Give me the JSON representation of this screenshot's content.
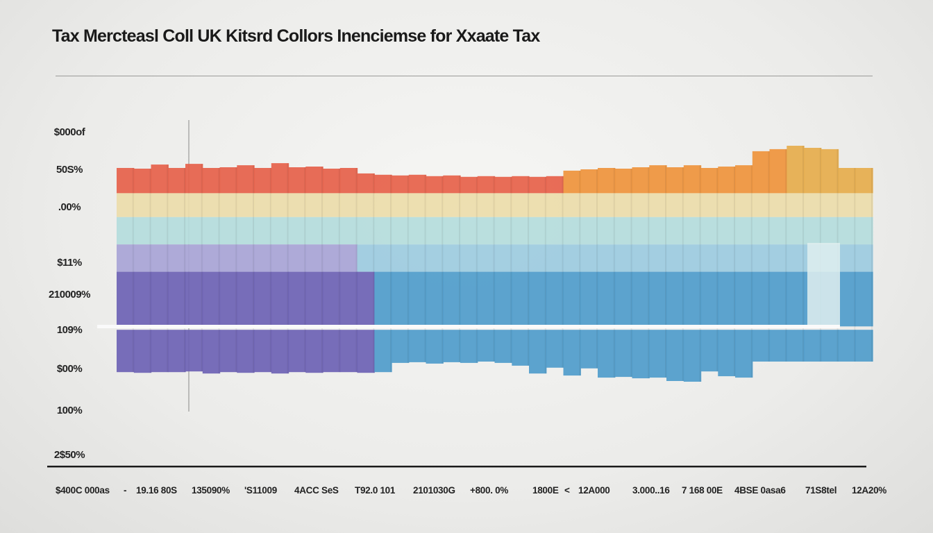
{
  "chart_data": {
    "type": "bar",
    "stacked": true,
    "title": "Tax Merctеasl Coll UK Kitsrd Collors Inenciemse for Xxaate Tax",
    "xlabel": "",
    "ylabel": "",
    "y_tick_labels": [
      "$000of",
      "50S%",
      ".00%",
      "$11%",
      "210009%",
      "109%",
      "$00%",
      "100%",
      "2$50%"
    ],
    "x_tick_labels": [
      "$400C 000as",
      "-",
      "19.16 80S",
      "135090%",
      "'S11009",
      "4ACC SeS",
      "T92.0 101",
      "2101030G",
      "+800. 0%",
      "1800E",
      "<",
      "12A000",
      "3.000..16",
      "7 168 00E",
      "4BSE 0asa6",
      "71S8tel",
      "12A20%"
    ],
    "ylim": [
      0,
      100
    ],
    "grid": false,
    "legend": "none",
    "segment_boundaries": [
      80,
      73,
      65,
      57,
      41,
      40
    ],
    "column_tops": [
      87.4,
      87.2,
      88.4,
      87.4,
      88.6,
      87.4,
      87.6,
      88.2,
      87.4,
      88.8,
      87.6,
      87.8,
      87.2,
      87.4,
      85.8,
      85.4,
      85.2,
      85.4,
      85.0,
      85.2,
      84.8,
      85.0,
      84.8,
      85.0,
      84.8,
      85.0,
      86.6,
      87.0,
      87.4,
      87.2,
      87.6,
      88.2,
      87.6,
      88.2,
      87.4,
      87.8,
      88.2,
      92.3,
      92.9,
      93.9,
      93.3,
      92.9,
      87.4,
      87.4
    ],
    "column_bottoms": [
      27.6,
      27.4,
      27.6,
      27.6,
      27.8,
      27.2,
      27.6,
      27.4,
      27.6,
      27.2,
      27.6,
      27.4,
      27.6,
      27.6,
      27.4,
      27.6,
      30.3,
      30.5,
      30.1,
      30.5,
      30.3,
      30.7,
      30.3,
      29.5,
      27.2,
      28.9,
      26.6,
      28.7,
      26.0,
      26.2,
      25.8,
      26.0,
      25.0,
      24.8,
      27.8,
      26.4,
      26.0,
      30.7,
      30.7,
      30.7,
      30.7,
      30.7,
      30.7,
      30.7
    ],
    "colors": {
      "red": "#e6614a",
      "orange": "#ef943c",
      "gold": "#e6ac4c",
      "cream": "#ecdcaa",
      "pale_blue": "#b4dcdc",
      "light_blue": "#9ccbe0",
      "lavender": "#a8a4d6",
      "purple": "#6d62b4",
      "blue": "#4f9ccb"
    }
  }
}
